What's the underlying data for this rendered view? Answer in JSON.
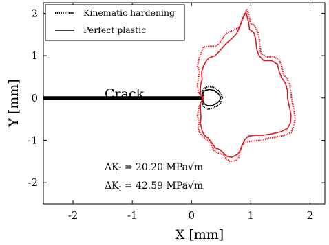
{
  "chart_data": {
    "type": "line",
    "xlabel": "X [mm]",
    "ylabel": "Y [mm]",
    "xlim": [
      -2.5,
      2.25
    ],
    "ylim": [
      -2.5,
      2.25
    ],
    "xticks": [
      -2,
      -1,
      0,
      1,
      2
    ],
    "yticks": [
      -2,
      -1,
      0,
      1,
      2
    ],
    "xtick_labels": [
      "-2",
      "-1",
      "0",
      "1",
      "2"
    ],
    "ytick_labels": [
      "-2",
      "-1",
      "0",
      "1",
      "2"
    ],
    "grid": false,
    "legend_position": "top-left",
    "legend": [
      {
        "label": "Kinematic hardening",
        "style": "dotted"
      },
      {
        "label": "Perfect plastic",
        "style": "solid"
      }
    ],
    "crack": {
      "label": "Crack",
      "x": [
        -2.5,
        0.2
      ],
      "y": [
        0,
        0
      ]
    },
    "annotations": [
      {
        "prefix": "ΔK",
        "subscript": "I",
        "text": " = 20.20 MPa√m",
        "color": "#000000"
      },
      {
        "prefix": "ΔK",
        "subscript": "I",
        "text": " = 42.59 MPa√m",
        "color": "#e8141c"
      }
    ],
    "series": [
      {
        "deltaK": "20.20",
        "model": "kinematic",
        "color": "#000000",
        "style": "dotted",
        "points": [
          [
            0.2,
            0.05
          ],
          [
            0.18,
            0.15
          ],
          [
            0.21,
            0.22
          ],
          [
            0.28,
            0.27
          ],
          [
            0.36,
            0.26
          ],
          [
            0.44,
            0.2
          ],
          [
            0.5,
            0.1
          ],
          [
            0.52,
            0.0
          ],
          [
            0.5,
            -0.1
          ],
          [
            0.44,
            -0.18
          ],
          [
            0.36,
            -0.24
          ],
          [
            0.28,
            -0.26
          ],
          [
            0.21,
            -0.22
          ],
          [
            0.18,
            -0.14
          ],
          [
            0.2,
            -0.05
          ]
        ]
      },
      {
        "deltaK": "20.20",
        "model": "perfect",
        "color": "#000000",
        "style": "solid",
        "points": [
          [
            0.2,
            0.04
          ],
          [
            0.19,
            0.12
          ],
          [
            0.23,
            0.18
          ],
          [
            0.3,
            0.2
          ],
          [
            0.38,
            0.18
          ],
          [
            0.44,
            0.12
          ],
          [
            0.48,
            0.05
          ],
          [
            0.49,
            0.0
          ],
          [
            0.47,
            -0.07
          ],
          [
            0.42,
            -0.13
          ],
          [
            0.35,
            -0.18
          ],
          [
            0.27,
            -0.18
          ],
          [
            0.22,
            -0.14
          ],
          [
            0.19,
            -0.08
          ],
          [
            0.2,
            -0.03
          ]
        ]
      },
      {
        "deltaK": "42.59",
        "model": "kinematic",
        "color": "#e8141c",
        "style": "dotted",
        "points": [
          [
            0.2,
            0.0
          ],
          [
            0.12,
            0.12
          ],
          [
            0.1,
            0.28
          ],
          [
            0.12,
            0.5
          ],
          [
            0.14,
            0.62
          ],
          [
            0.1,
            0.75
          ],
          [
            0.12,
            0.9
          ],
          [
            0.16,
            1.05
          ],
          [
            0.2,
            1.2
          ],
          [
            0.3,
            1.22
          ],
          [
            0.42,
            1.22
          ],
          [
            0.5,
            1.35
          ],
          [
            0.58,
            1.52
          ],
          [
            0.7,
            1.6
          ],
          [
            0.8,
            1.66
          ],
          [
            0.85,
            1.82
          ],
          [
            0.9,
            2.0
          ],
          [
            0.93,
            2.1
          ],
          [
            0.97,
            1.95
          ],
          [
            1.0,
            1.75
          ],
          [
            1.06,
            1.72
          ],
          [
            1.12,
            1.55
          ],
          [
            1.15,
            1.3
          ],
          [
            1.17,
            1.05
          ],
          [
            1.28,
            0.97
          ],
          [
            1.38,
            0.98
          ],
          [
            1.48,
            0.9
          ],
          [
            1.52,
            0.75
          ],
          [
            1.55,
            0.55
          ],
          [
            1.62,
            0.45
          ],
          [
            1.66,
            0.3
          ],
          [
            1.68,
            0.1
          ],
          [
            1.7,
            -0.1
          ],
          [
            1.73,
            -0.28
          ],
          [
            1.75,
            -0.5
          ],
          [
            1.72,
            -0.68
          ],
          [
            1.68,
            -0.82
          ],
          [
            1.52,
            -0.9
          ],
          [
            1.3,
            -0.95
          ],
          [
            1.18,
            -1.0
          ],
          [
            1.0,
            -1.02
          ],
          [
            0.9,
            -1.05
          ],
          [
            0.85,
            -1.12
          ],
          [
            0.82,
            -1.25
          ],
          [
            0.8,
            -1.4
          ],
          [
            0.75,
            -1.48
          ],
          [
            0.65,
            -1.5
          ],
          [
            0.58,
            -1.43
          ],
          [
            0.55,
            -1.35
          ],
          [
            0.45,
            -1.3
          ],
          [
            0.38,
            -1.25
          ],
          [
            0.32,
            -1.05
          ],
          [
            0.22,
            -0.95
          ],
          [
            0.15,
            -0.85
          ],
          [
            0.11,
            -0.72
          ],
          [
            0.13,
            -0.58
          ],
          [
            0.1,
            -0.42
          ],
          [
            0.13,
            -0.2
          ],
          [
            0.2,
            0.0
          ]
        ]
      },
      {
        "deltaK": "42.59",
        "model": "perfect",
        "color": "#e8141c",
        "style": "solid",
        "points": [
          [
            0.2,
            0.0
          ],
          [
            0.15,
            0.1
          ],
          [
            0.15,
            0.28
          ],
          [
            0.18,
            0.45
          ],
          [
            0.17,
            0.6
          ],
          [
            0.2,
            0.75
          ],
          [
            0.25,
            0.88
          ],
          [
            0.3,
            0.95
          ],
          [
            0.4,
            1.0
          ],
          [
            0.48,
            1.12
          ],
          [
            0.58,
            1.28
          ],
          [
            0.68,
            1.4
          ],
          [
            0.76,
            1.52
          ],
          [
            0.82,
            1.7
          ],
          [
            0.86,
            1.88
          ],
          [
            0.92,
            2.02
          ],
          [
            0.96,
            1.8
          ],
          [
            0.98,
            1.62
          ],
          [
            1.05,
            1.55
          ],
          [
            1.08,
            1.4
          ],
          [
            1.1,
            1.15
          ],
          [
            1.14,
            1.0
          ],
          [
            1.22,
            0.88
          ],
          [
            1.35,
            0.88
          ],
          [
            1.45,
            0.8
          ],
          [
            1.48,
            0.62
          ],
          [
            1.52,
            0.48
          ],
          [
            1.58,
            0.36
          ],
          [
            1.62,
            0.18
          ],
          [
            1.62,
            0.0
          ],
          [
            1.65,
            -0.2
          ],
          [
            1.68,
            -0.4
          ],
          [
            1.67,
            -0.58
          ],
          [
            1.62,
            -0.72
          ],
          [
            1.5,
            -0.8
          ],
          [
            1.35,
            -0.85
          ],
          [
            1.2,
            -0.88
          ],
          [
            1.08,
            -0.88
          ],
          [
            0.96,
            -0.9
          ],
          [
            0.9,
            -0.98
          ],
          [
            0.86,
            -1.1
          ],
          [
            0.83,
            -1.22
          ],
          [
            0.78,
            -1.33
          ],
          [
            0.68,
            -1.4
          ],
          [
            0.6,
            -1.38
          ],
          [
            0.54,
            -1.3
          ],
          [
            0.48,
            -1.22
          ],
          [
            0.4,
            -1.18
          ],
          [
            0.34,
            -1.05
          ],
          [
            0.28,
            -0.95
          ],
          [
            0.22,
            -0.88
          ],
          [
            0.18,
            -0.78
          ],
          [
            0.15,
            -0.6
          ],
          [
            0.16,
            -0.45
          ],
          [
            0.15,
            -0.28
          ],
          [
            0.15,
            -0.12
          ],
          [
            0.2,
            0.0
          ]
        ]
      }
    ]
  }
}
